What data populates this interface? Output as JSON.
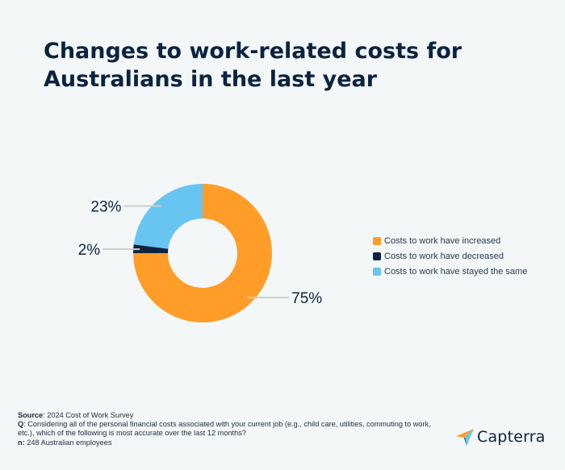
{
  "title_lines": [
    "Changes to work-related costs for",
    "Australians in the last year"
  ],
  "chart_data": {
    "type": "pie",
    "title": "Changes to work-related costs for Australians in the last year",
    "categories": [
      "Costs to work have increased",
      "Costs to work have decreased",
      "Costs to work have stayed the same"
    ],
    "values": [
      75,
      2,
      23
    ],
    "value_labels": [
      "75%",
      "2%",
      "23%"
    ],
    "colors": [
      "#ff9d28",
      "#0b2340",
      "#68c5f2"
    ],
    "donut": true,
    "legend_position": "right"
  },
  "footer": {
    "source_label": "Source",
    "source_text": ": 2024 Cost of Work Survey",
    "q_label": "Q",
    "q_text": ": Considering all of the personal financial costs associated with your current job (e.g., child care, utilities, commuting to work, etc.), which of the following is most accurate over the last 12 months?",
    "n_label": "n:",
    "n_text": " 248 Australian employees"
  },
  "brand": {
    "name": "Capterra",
    "icon": "capterra-arrow-icon"
  }
}
